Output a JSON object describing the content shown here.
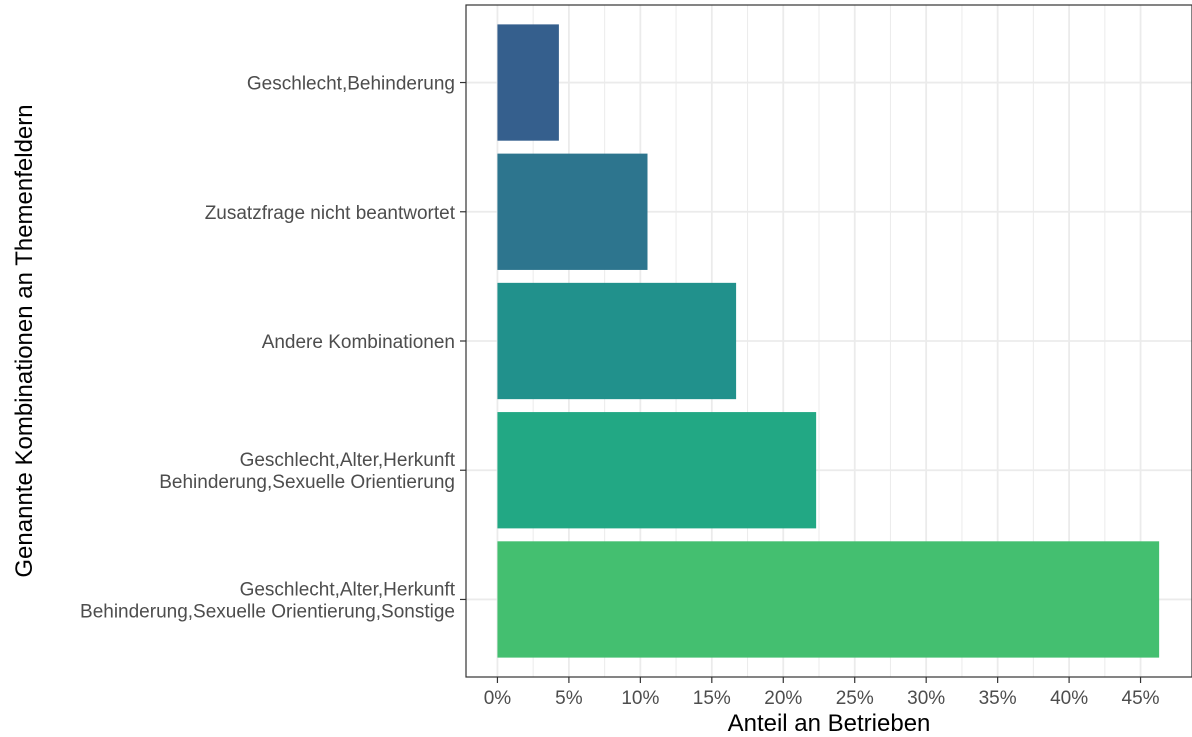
{
  "chart_data": {
    "type": "bar",
    "orientation": "horizontal",
    "title": "",
    "xlabel": "Anteil an Betrieben",
    "ylabel": "Genannte Kombinationen an Themenfeldern",
    "categories": [
      [
        "Geschlecht,Behinderung"
      ],
      [
        "Zusatzfrage nicht beantwortet"
      ],
      [
        "Andere Kombinationen"
      ],
      [
        "Geschlecht,Alter,Herkunft",
        "Behinderung,Sexuelle Orientierung"
      ],
      [
        "Geschlecht,Alter,Herkunft",
        "Behinderung,Sexuelle Orientierung,Sonstige"
      ]
    ],
    "values": [
      4.3,
      10.5,
      16.7,
      22.3,
      46.3
    ],
    "colors": [
      "#355f8d",
      "#2d758e",
      "#21918c",
      "#22a884",
      "#44bf70"
    ],
    "xlim": [
      -2.2,
      48.6
    ],
    "xticks": [
      0,
      5,
      10,
      15,
      20,
      25,
      30,
      35,
      40,
      45
    ],
    "xtick_labels": [
      "0%",
      "5%",
      "10%",
      "15%",
      "20%",
      "25%",
      "30%",
      "35%",
      "40%",
      "45%"
    ],
    "grid": true,
    "legend": "none"
  }
}
